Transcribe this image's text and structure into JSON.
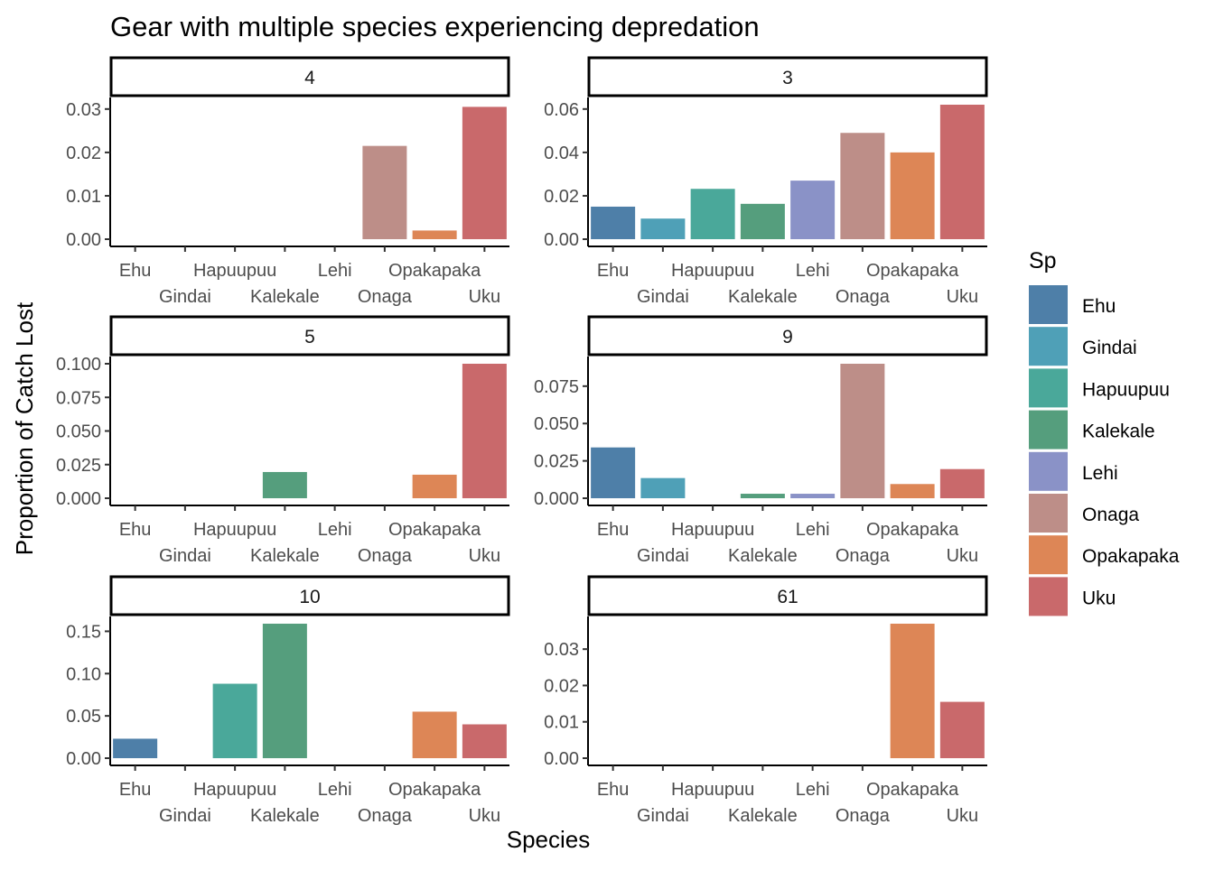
{
  "chart_data": {
    "type": "bar",
    "title": "Gear with multiple species experiencing depredation",
    "xlabel": "Species",
    "ylabel": "Proportion of Catch Lost",
    "categories": [
      "Ehu",
      "Gindai",
      "Hapuupuu",
      "Kalekale",
      "Lehi",
      "Onaga",
      "Opakapaka",
      "Uku"
    ],
    "legend": {
      "title": "Sp",
      "position": "right",
      "entries": [
        "Ehu",
        "Gindai",
        "Hapuupuu",
        "Kalekale",
        "Lehi",
        "Onaga",
        "Opakapaka",
        "Uku"
      ]
    },
    "colors": {
      "Ehu": "#4e7fa8",
      "Gindai": "#4fa0b7",
      "Hapuupuu": "#4aa89a",
      "Kalekale": "#559e7d",
      "Lehi": "#8a92c7",
      "Onaga": "#bd8e88",
      "Opakapaka": "#dd8656",
      "Uku": "#c9696b"
    },
    "grid": false,
    "facets": [
      {
        "label": "4",
        "ylim": [
          0,
          0.031
        ],
        "yticks": [
          0,
          0.01,
          0.02,
          0.03
        ],
        "yticklabels": [
          "0.00",
          "0.01",
          "0.02",
          "0.03"
        ],
        "values": [
          0,
          0,
          0,
          0,
          0,
          0.0215,
          0.002,
          0.0305
        ]
      },
      {
        "label": "3",
        "ylim": [
          0,
          0.062
        ],
        "yticks": [
          0,
          0.02,
          0.04,
          0.06
        ],
        "yticklabels": [
          "0.00",
          "0.02",
          "0.04",
          "0.06"
        ],
        "values": [
          0.015,
          0.0095,
          0.0232,
          0.0163,
          0.027,
          0.049,
          0.04,
          0.062
        ]
      },
      {
        "label": "5",
        "ylim": [
          0,
          0.1
        ],
        "yticks": [
          0,
          0.025,
          0.05,
          0.075,
          0.1
        ],
        "yticklabels": [
          "0.000",
          "0.025",
          "0.050",
          "0.075",
          "0.100"
        ],
        "values": [
          0,
          0,
          0,
          0.0195,
          0,
          0,
          0.0175,
          0.1
        ]
      },
      {
        "label": "9",
        "ylim": [
          0,
          0.09
        ],
        "yticks": [
          0,
          0.025,
          0.05,
          0.075
        ],
        "yticklabels": [
          "0.000",
          "0.025",
          "0.050",
          "0.075"
        ],
        "values": [
          0.034,
          0.0135,
          0,
          0.003,
          0.003,
          0.09,
          0.0095,
          0.0195
        ]
      },
      {
        "label": "10",
        "ylim": [
          0,
          0.159
        ],
        "yticks": [
          0,
          0.05,
          0.1,
          0.15
        ],
        "yticklabels": [
          "0.00",
          "0.05",
          "0.10",
          "0.15"
        ],
        "values": [
          0.023,
          0,
          0.088,
          0.159,
          0,
          0,
          0.055,
          0.04
        ]
      },
      {
        "label": "61",
        "ylim": [
          0,
          0.037
        ],
        "yticks": [
          0,
          0.01,
          0.02,
          0.03
        ],
        "yticklabels": [
          "0.00",
          "0.01",
          "0.02",
          "0.03"
        ],
        "values": [
          0,
          0,
          0,
          0,
          0,
          0,
          0.037,
          0.0155
        ]
      }
    ]
  }
}
